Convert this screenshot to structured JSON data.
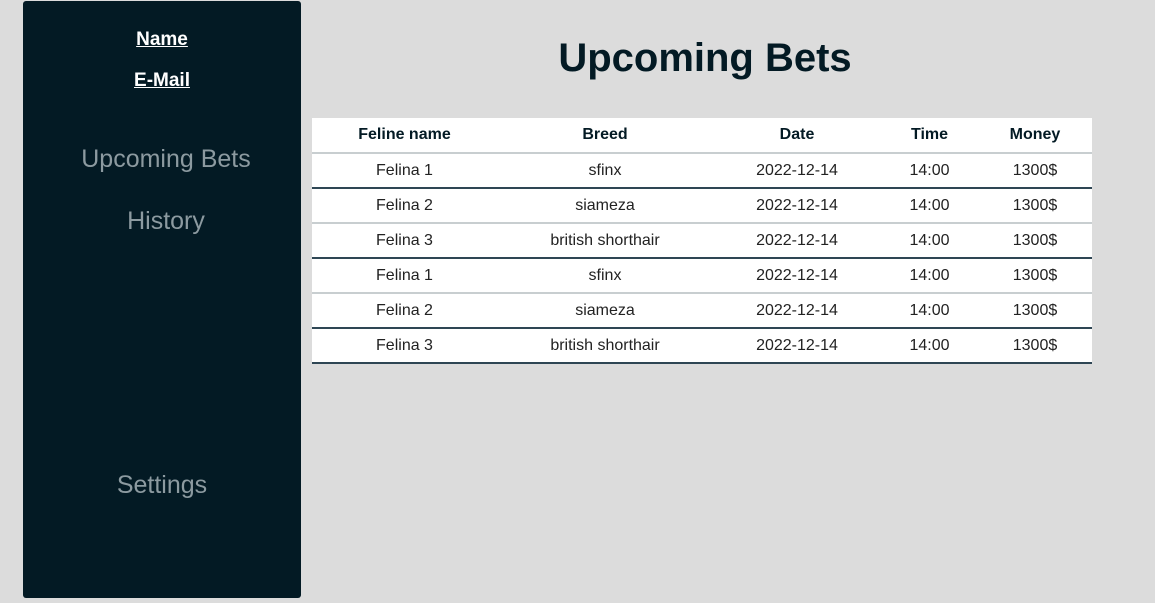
{
  "sidebar": {
    "user_name": "Name",
    "user_email": "E-Mail",
    "nav": {
      "upcoming": "Upcoming Bets",
      "history": "History",
      "settings": "Settings"
    }
  },
  "main": {
    "title": "Upcoming Bets",
    "table": {
      "headers": [
        "Feline name",
        "Breed",
        "Date",
        "Time",
        "Money"
      ],
      "rows": [
        [
          "Felina 1",
          "sfinx",
          "2022-12-14",
          "14:00",
          "1300$"
        ],
        [
          "Felina 2",
          "siameza",
          "2022-12-14",
          "14:00",
          "1300$"
        ],
        [
          "Felina 3",
          "british shorthair",
          "2022-12-14",
          "14:00",
          "1300$"
        ],
        [
          "Felina 1",
          "sfinx",
          "2022-12-14",
          "14:00",
          "1300$"
        ],
        [
          "Felina 2",
          "siameza",
          "2022-12-14",
          "14:00",
          "1300$"
        ],
        [
          "Felina 3",
          "british shorthair",
          "2022-12-14",
          "14:00",
          "1300$"
        ]
      ]
    }
  },
  "colors": {
    "sidebar_bg": "#031a24",
    "page_bg": "#dcdcdc",
    "nav_text": "#8c9aa0"
  }
}
